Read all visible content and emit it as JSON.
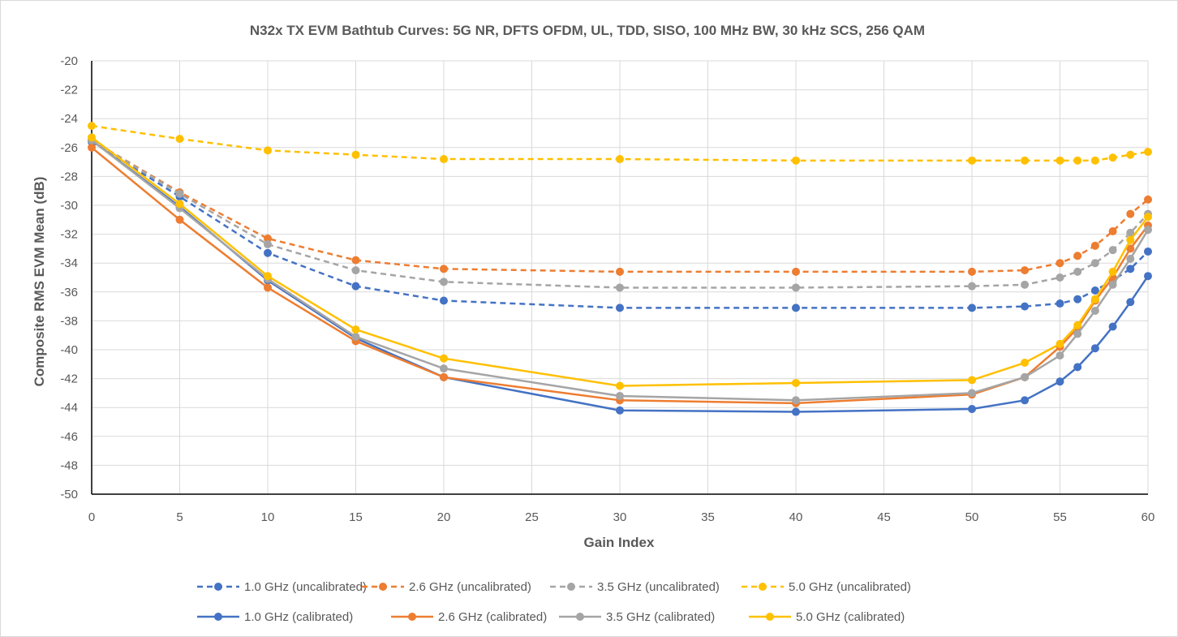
{
  "chart_data": {
    "type": "line",
    "title": "N32x TX EVM Bathtub Curves: 5G NR, DFTS OFDM, UL, TDD, SISO, 100 MHz BW, 30 kHz SCS, 256 QAM",
    "xlabel": "Gain Index",
    "ylabel": "Composite RMS EVM Mean (dB)",
    "xlim": [
      0,
      60
    ],
    "ylim": [
      -50,
      -20
    ],
    "xticks": [
      0,
      5,
      10,
      15,
      20,
      25,
      30,
      35,
      40,
      45,
      50,
      55,
      60
    ],
    "yticks": [
      -50,
      -48,
      -46,
      -44,
      -42,
      -40,
      -38,
      -36,
      -34,
      -32,
      -30,
      -28,
      -26,
      -24,
      -22,
      -20
    ],
    "grid": true,
    "legend_position": "bottom",
    "x": [
      0,
      5,
      10,
      15,
      20,
      30,
      40,
      50,
      53,
      55,
      56,
      57,
      58,
      59,
      60
    ],
    "series": [
      {
        "name": "1.0 GHz (uncalibrated)",
        "color": "#4472C4",
        "dash": true,
        "values": [
          -25.6,
          -29.4,
          -33.3,
          -35.6,
          -36.6,
          -37.1,
          -37.1,
          -37.1,
          -37.0,
          -36.8,
          -36.5,
          -35.9,
          -35.2,
          -34.4,
          -33.2
        ]
      },
      {
        "name": "2.6 GHz (uncalibrated)",
        "color": "#ED7D31",
        "dash": true,
        "values": [
          -25.5,
          -29.1,
          -32.3,
          -33.8,
          -34.4,
          -34.6,
          -34.6,
          -34.6,
          -34.5,
          -34.0,
          -33.5,
          -32.8,
          -31.8,
          -30.6,
          -29.6
        ]
      },
      {
        "name": "3.5 GHz (uncalibrated)",
        "color": "#A5A5A5",
        "dash": true,
        "values": [
          -25.5,
          -29.2,
          -32.7,
          -34.5,
          -35.3,
          -35.7,
          -35.7,
          -35.6,
          -35.5,
          -35.0,
          -34.6,
          -34.0,
          -33.1,
          -31.9,
          -30.6
        ]
      },
      {
        "name": "5.0 GHz (uncalibrated)",
        "color": "#FFC000",
        "dash": true,
        "values": [
          -24.5,
          -25.4,
          -26.2,
          -26.5,
          -26.8,
          -26.8,
          -26.9,
          -26.9,
          -26.9,
          -26.9,
          -26.9,
          -26.9,
          -26.7,
          -26.5,
          -26.3
        ]
      },
      {
        "name": "1.0 GHz (calibrated)",
        "color": "#4472C4",
        "dash": false,
        "values": [
          -25.5,
          -30.1,
          -35.2,
          -39.2,
          -41.9,
          -44.2,
          -44.3,
          -44.1,
          -43.5,
          -42.2,
          -41.2,
          -39.9,
          -38.4,
          -36.7,
          -34.9
        ]
      },
      {
        "name": "2.6 GHz (calibrated)",
        "color": "#ED7D31",
        "dash": false,
        "values": [
          -26.0,
          -31.0,
          -35.7,
          -39.4,
          -41.9,
          -43.5,
          -43.7,
          -43.1,
          -41.9,
          -39.8,
          -38.5,
          -36.6,
          -35.0,
          -33.0,
          -31.4
        ]
      },
      {
        "name": "3.5 GHz (calibrated)",
        "color": "#A5A5A5",
        "dash": false,
        "values": [
          -25.5,
          -30.2,
          -35.1,
          -39.1,
          -41.3,
          -43.2,
          -43.5,
          -43.0,
          -41.9,
          -40.4,
          -38.9,
          -37.3,
          -35.5,
          -33.7,
          -31.7
        ]
      },
      {
        "name": "5.0 GHz (calibrated)",
        "color": "#FFC000",
        "dash": false,
        "values": [
          -25.3,
          -29.9,
          -34.9,
          -38.6,
          -40.6,
          -42.5,
          -42.3,
          -42.1,
          -40.9,
          -39.6,
          -38.3,
          -36.5,
          -34.6,
          -32.4,
          -30.8
        ]
      }
    ]
  }
}
